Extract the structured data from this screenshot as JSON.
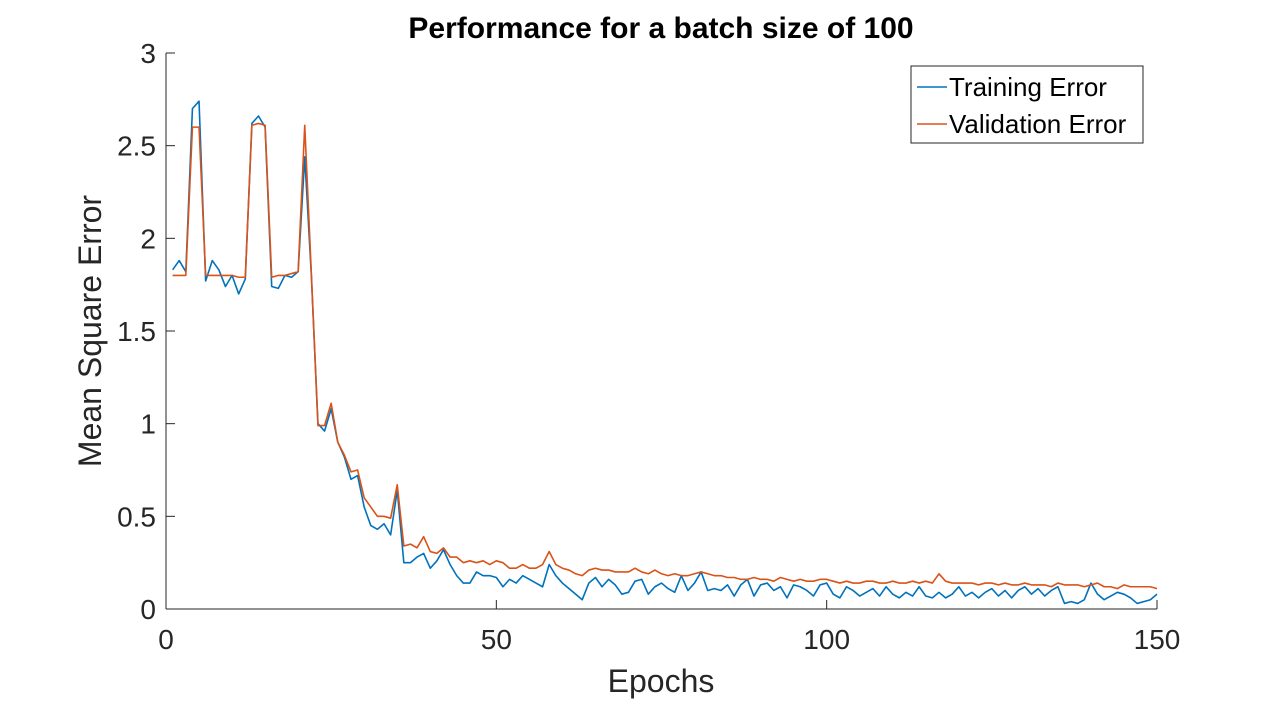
{
  "chart_data": {
    "type": "line",
    "title": "Performance for a batch size of 100",
    "xlabel": "Epochs",
    "ylabel": "Mean Square Error",
    "xlim": [
      0,
      150
    ],
    "ylim": [
      0,
      3
    ],
    "xticks": [
      "0",
      "50",
      "100",
      "150"
    ],
    "yticks": [
      "0",
      "0.5",
      "1",
      "1.5",
      "2",
      "2.5",
      "3"
    ],
    "grid": false,
    "legend_position": "top-right",
    "x": [
      1,
      2,
      3,
      4,
      5,
      6,
      7,
      8,
      9,
      10,
      11,
      12,
      13,
      14,
      15,
      16,
      17,
      18,
      19,
      20,
      21,
      22,
      23,
      24,
      25,
      26,
      27,
      28,
      29,
      30,
      31,
      32,
      33,
      34,
      35,
      36,
      37,
      38,
      39,
      40,
      41,
      42,
      43,
      44,
      45,
      46,
      47,
      48,
      49,
      50,
      51,
      52,
      53,
      54,
      55,
      56,
      57,
      58,
      59,
      60,
      61,
      62,
      63,
      64,
      65,
      66,
      67,
      68,
      69,
      70,
      71,
      72,
      73,
      74,
      75,
      76,
      77,
      78,
      79,
      80,
      81,
      82,
      83,
      84,
      85,
      86,
      87,
      88,
      89,
      90,
      91,
      92,
      93,
      94,
      95,
      96,
      97,
      98,
      99,
      100,
      101,
      102,
      103,
      104,
      105,
      106,
      107,
      108,
      109,
      110,
      111,
      112,
      113,
      114,
      115,
      116,
      117,
      118,
      119,
      120,
      121,
      122,
      123,
      124,
      125,
      126,
      127,
      128,
      129,
      130,
      131,
      132,
      133,
      134,
      135,
      136,
      137,
      138,
      139,
      140,
      141,
      142,
      143,
      144,
      145,
      146,
      147,
      148,
      149,
      150
    ],
    "series": [
      {
        "name": "Training Error",
        "color": "#0072BD",
        "values": [
          1.83,
          1.88,
          1.82,
          2.7,
          2.74,
          1.77,
          1.88,
          1.83,
          1.74,
          1.8,
          1.7,
          1.78,
          2.62,
          2.66,
          2.6,
          1.74,
          1.73,
          1.8,
          1.79,
          1.82,
          2.44,
          1.8,
          1.0,
          0.96,
          1.08,
          0.9,
          0.82,
          0.7,
          0.72,
          0.55,
          0.45,
          0.43,
          0.46,
          0.4,
          0.64,
          0.25,
          0.25,
          0.28,
          0.3,
          0.22,
          0.26,
          0.32,
          0.24,
          0.18,
          0.14,
          0.14,
          0.2,
          0.18,
          0.18,
          0.17,
          0.12,
          0.16,
          0.14,
          0.18,
          0.16,
          0.14,
          0.12,
          0.24,
          0.18,
          0.14,
          0.11,
          0.08,
          0.05,
          0.14,
          0.17,
          0.12,
          0.16,
          0.13,
          0.08,
          0.09,
          0.15,
          0.16,
          0.08,
          0.12,
          0.14,
          0.11,
          0.09,
          0.18,
          0.1,
          0.14,
          0.2,
          0.1,
          0.11,
          0.1,
          0.13,
          0.07,
          0.13,
          0.16,
          0.07,
          0.13,
          0.14,
          0.1,
          0.12,
          0.06,
          0.13,
          0.12,
          0.1,
          0.07,
          0.13,
          0.14,
          0.08,
          0.06,
          0.12,
          0.1,
          0.07,
          0.09,
          0.11,
          0.07,
          0.12,
          0.08,
          0.06,
          0.09,
          0.07,
          0.12,
          0.07,
          0.06,
          0.09,
          0.06,
          0.08,
          0.12,
          0.07,
          0.09,
          0.06,
          0.09,
          0.11,
          0.07,
          0.1,
          0.06,
          0.1,
          0.12,
          0.08,
          0.11,
          0.07,
          0.1,
          0.12,
          0.03,
          0.04,
          0.03,
          0.05,
          0.14,
          0.08,
          0.05,
          0.07,
          0.09,
          0.08,
          0.06,
          0.03,
          0.04,
          0.05,
          0.08
        ]
      },
      {
        "name": "Validation Error",
        "color": "#D95319",
        "values": [
          1.8,
          1.8,
          1.8,
          2.6,
          2.6,
          1.8,
          1.8,
          1.8,
          1.8,
          1.8,
          1.79,
          1.79,
          2.61,
          2.62,
          2.61,
          1.79,
          1.8,
          1.8,
          1.81,
          1.82,
          2.61,
          1.81,
          0.99,
          0.99,
          1.11,
          0.9,
          0.83,
          0.74,
          0.75,
          0.6,
          0.55,
          0.5,
          0.5,
          0.49,
          0.67,
          0.34,
          0.35,
          0.33,
          0.39,
          0.31,
          0.3,
          0.33,
          0.28,
          0.28,
          0.25,
          0.26,
          0.25,
          0.26,
          0.24,
          0.26,
          0.25,
          0.22,
          0.22,
          0.24,
          0.22,
          0.22,
          0.24,
          0.31,
          0.24,
          0.22,
          0.21,
          0.19,
          0.18,
          0.21,
          0.22,
          0.21,
          0.21,
          0.2,
          0.2,
          0.2,
          0.22,
          0.2,
          0.19,
          0.21,
          0.19,
          0.18,
          0.19,
          0.18,
          0.18,
          0.19,
          0.2,
          0.19,
          0.18,
          0.18,
          0.17,
          0.17,
          0.16,
          0.16,
          0.17,
          0.16,
          0.16,
          0.15,
          0.17,
          0.16,
          0.15,
          0.16,
          0.15,
          0.15,
          0.16,
          0.16,
          0.15,
          0.14,
          0.15,
          0.14,
          0.14,
          0.15,
          0.15,
          0.14,
          0.14,
          0.15,
          0.14,
          0.14,
          0.15,
          0.14,
          0.15,
          0.14,
          0.19,
          0.15,
          0.14,
          0.14,
          0.14,
          0.14,
          0.13,
          0.14,
          0.14,
          0.13,
          0.14,
          0.13,
          0.13,
          0.14,
          0.13,
          0.13,
          0.13,
          0.12,
          0.14,
          0.13,
          0.13,
          0.13,
          0.12,
          0.13,
          0.14,
          0.12,
          0.12,
          0.11,
          0.13,
          0.12,
          0.12,
          0.12,
          0.12,
          0.11
        ]
      }
    ]
  }
}
